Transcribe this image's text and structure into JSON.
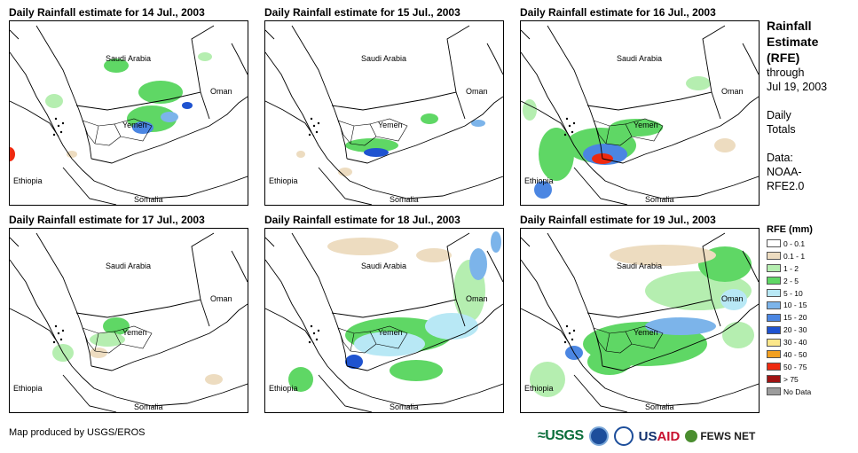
{
  "panels": [
    {
      "title": "Daily Rainfall estimate for 14 Jul., 2003",
      "day": 14
    },
    {
      "title": "Daily Rainfall estimate for 15 Jul., 2003",
      "day": 15
    },
    {
      "title": "Daily Rainfall estimate for 16 Jul., 2003",
      "day": 16
    },
    {
      "title": "Daily Rainfall estimate for 17 Jul., 2003",
      "day": 17
    },
    {
      "title": "Daily Rainfall estimate for 18 Jul., 2003",
      "day": 18
    },
    {
      "title": "Daily Rainfall estimate for 19 Jul., 2003",
      "day": 19
    }
  ],
  "map_labels": {
    "saudi": "Saudi Arabia",
    "oman": "Oman",
    "yemen": "Yemen",
    "ethiopia": "Ethiopia",
    "somalia": "Somalia"
  },
  "side": {
    "title_1": "Rainfall",
    "title_2": "Estimate",
    "title_3": "(RFE)",
    "through": "through",
    "date": "Jul 19, 2003",
    "daily": "Daily",
    "totals": "Totals",
    "data_label": "Data:",
    "source_1": "NOAA-",
    "source_2": "RFE2.0"
  },
  "legend": {
    "title": "RFE (mm)",
    "items": [
      {
        "label": "0 - 0.1",
        "color": "#ffffff"
      },
      {
        "label": "0.1 - 1",
        "color": "#eddcc0"
      },
      {
        "label": "1 - 2",
        "color": "#b5eeb0"
      },
      {
        "label": "2 - 5",
        "color": "#5fd765"
      },
      {
        "label": "5 - 10",
        "color": "#b8e8f5"
      },
      {
        "label": "10 - 15",
        "color": "#7cb4ea"
      },
      {
        "label": "15 - 20",
        "color": "#4b86e2"
      },
      {
        "label": "20 - 30",
        "color": "#1f53d0"
      },
      {
        "label": "30 - 40",
        "color": "#fce78a"
      },
      {
        "label": "40 - 50",
        "color": "#f3a020"
      },
      {
        "label": "50 - 75",
        "color": "#ee2a10"
      },
      {
        "label": "> 75",
        "color": "#a01414"
      },
      {
        "label": "No Data",
        "color": "#9c9c9c"
      }
    ]
  },
  "credit": "Map produced by USGS/EROS",
  "logos": {
    "usgs": "≈USGS",
    "usaid_us": "US",
    "usaid_aid": "AID",
    "fews": "FEWS NET"
  },
  "icons": [
    "noaa-logo-icon",
    "nasa-logo-icon",
    "fews-globe-icon"
  ]
}
